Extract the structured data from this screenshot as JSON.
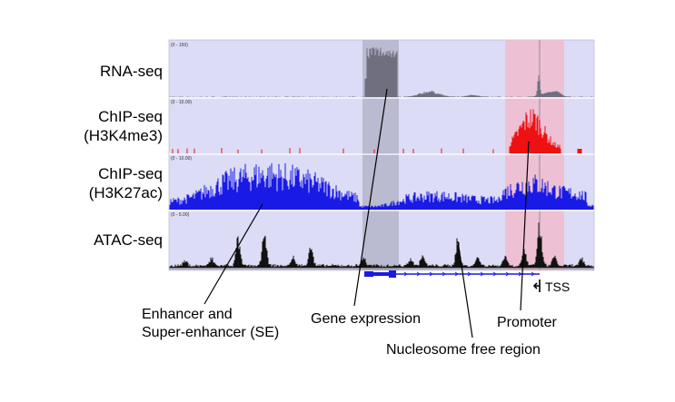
{
  "tracks": [
    {
      "label_line1": "RNA-seq",
      "label_line2": "",
      "range": "(0 - 150)",
      "color": "#6f6f80"
    },
    {
      "label_line1": "ChIP-seq",
      "label_line2": "(H3K4me3)",
      "range": "(0 - 10.00)",
      "color": "#ee1111"
    },
    {
      "label_line1": "ChIP-seq",
      "label_line2": "(H3K27ac)",
      "range": "(0 - 10.00)",
      "color": "#1a1ae6"
    },
    {
      "label_line1": "ATAC-seq",
      "label_line2": "",
      "range": "(0 - 5.00)",
      "color": "#111111"
    }
  ],
  "annotations": {
    "enhancer_line1": "Enhancer and",
    "enhancer_line2": "Super-enhancer (SE)",
    "gene_expression": "Gene expression",
    "promoter": "Promoter",
    "nucleosome_free": "Nucleosome free region",
    "tss": "TSS"
  },
  "colors": {
    "panel_bg": "#dcdcf7",
    "gene_highlight": "#b9b9cc",
    "promoter_highlight": "#f2c2d3",
    "gene_model": "#1a1ae6"
  }
}
